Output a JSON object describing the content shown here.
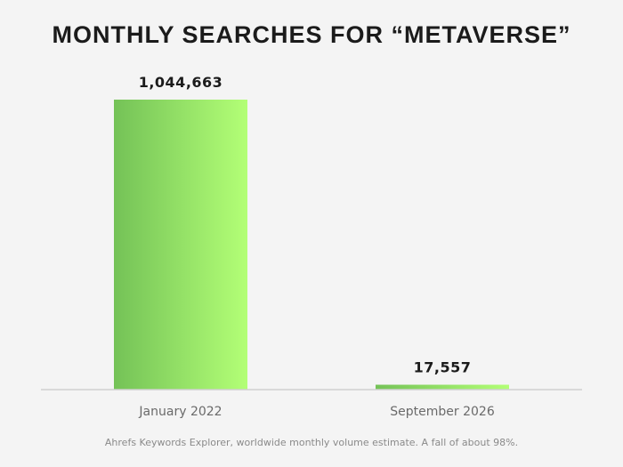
{
  "chart_data": {
    "type": "bar",
    "title": "MONTHLY SEARCHES FOR “METAVERSE”",
    "categories": [
      "January 2022",
      "September 2026"
    ],
    "values": [
      1044663,
      17557
    ],
    "value_labels": [
      "1,044,663",
      "17,557"
    ],
    "ylim": [
      0,
      1044663
    ],
    "grid": false,
    "caption": "Ahrefs Keywords Explorer, worldwide monthly volume estimate. A fall of about 98%.",
    "colors": {
      "bar_left": "#74c257",
      "bar_right": "#b3ff76",
      "baseline": "#d0d0d0",
      "background": "#f4f4f4"
    }
  }
}
